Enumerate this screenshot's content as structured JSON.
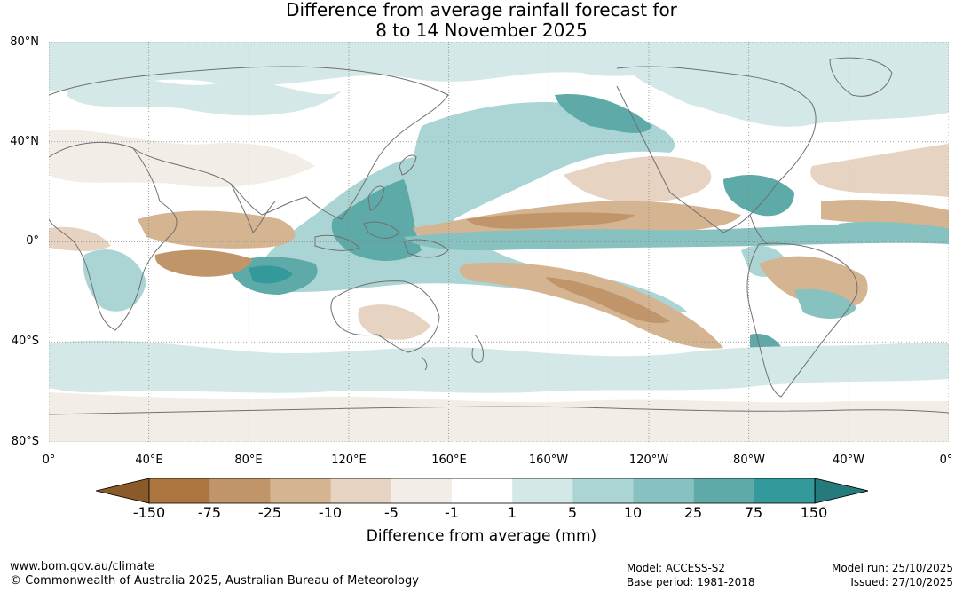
{
  "title": {
    "line1": "Difference from average rainfall forecast for",
    "line2": "8 to 14 November 2025"
  },
  "axes": {
    "lat_labels": [
      "80°N",
      "40°N",
      "0°",
      "40°S",
      "80°S"
    ],
    "lon_labels": [
      "0°",
      "40°E",
      "80°E",
      "120°E",
      "160°E",
      "160°W",
      "120°W",
      "80°W",
      "40°W",
      "0°"
    ]
  },
  "colorbar": {
    "title": "Difference from average (mm)",
    "tick_labels": [
      "-150",
      "-75",
      "-25",
      "-10",
      "-5",
      "-1",
      "1",
      "5",
      "10",
      "25",
      "75",
      "150"
    ],
    "colors": [
      "#8a5a2b",
      "#ad7640",
      "#c0956a",
      "#d5b491",
      "#e6d3c1",
      "#f2ede6",
      "#ffffff",
      "#d3e8e7",
      "#abd5d4",
      "#87c1c0",
      "#5eaaa8",
      "#33999a",
      "#257a7b"
    ]
  },
  "footer": {
    "website": "www.bom.gov.au/climate",
    "copyright": "© Commonwealth of Australia 2025, Australian Bureau of Meteorology",
    "model": "Model: ACCESS-S2",
    "base_period": "Base period: 1981-2018",
    "model_run": "Model run: 25/10/2025",
    "issued": "Issued: 27/10/2025"
  }
}
